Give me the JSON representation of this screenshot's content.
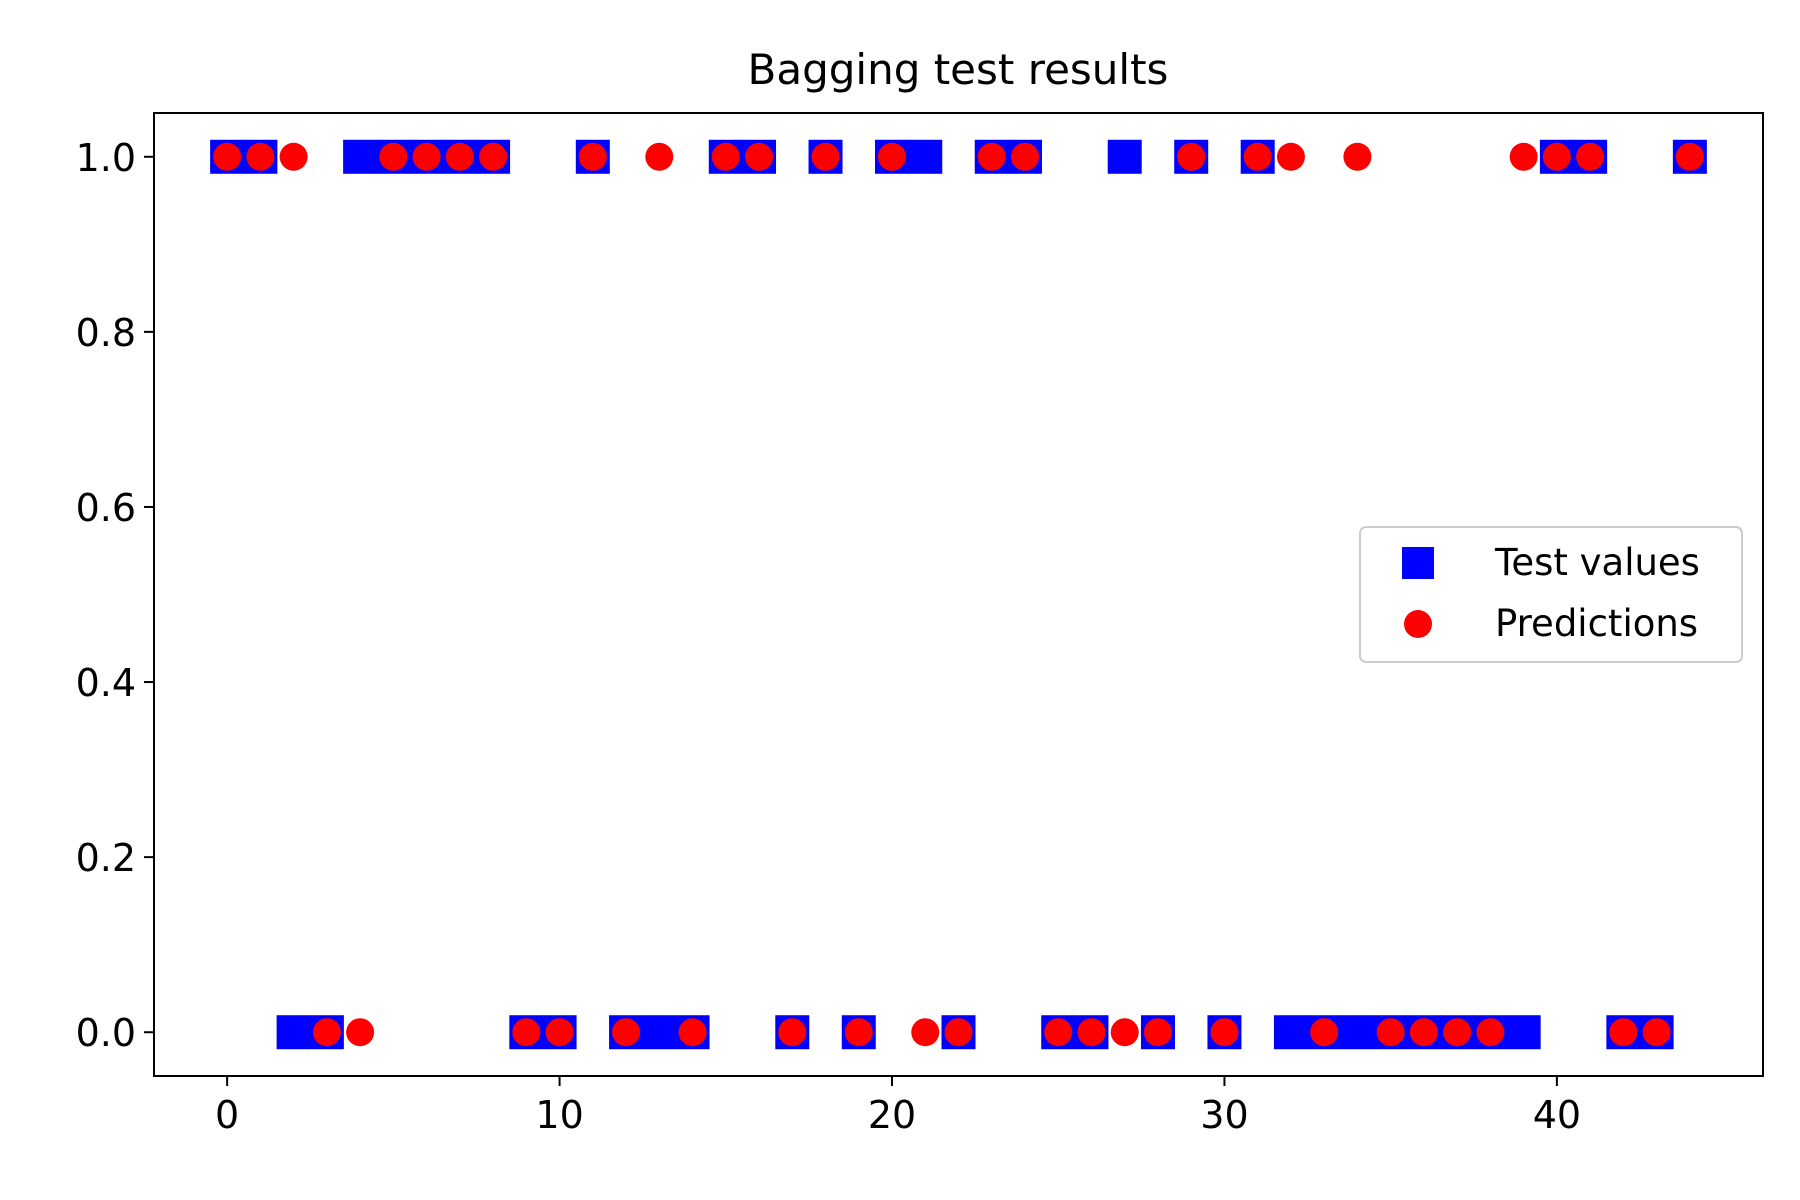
{
  "chart_data": {
    "type": "scatter",
    "title": "Bagging test results",
    "xlabel": "",
    "ylabel": "",
    "xlim": [
      -2.2,
      46.2
    ],
    "ylim": [
      -0.05,
      1.05
    ],
    "x_ticks": [
      0,
      10,
      20,
      30,
      40
    ],
    "y_ticks": [
      0.0,
      0.2,
      0.4,
      0.6,
      0.8,
      1.0
    ],
    "grid": false,
    "legend_position": "center-right",
    "x": [
      0,
      1,
      2,
      3,
      4,
      5,
      6,
      7,
      8,
      9,
      10,
      11,
      12,
      13,
      14,
      15,
      16,
      17,
      18,
      19,
      20,
      21,
      22,
      23,
      24,
      25,
      26,
      27,
      28,
      29,
      30,
      31,
      32,
      33,
      34,
      35,
      36,
      37,
      38,
      39,
      40,
      41,
      42,
      43,
      44
    ],
    "series": [
      {
        "name": "Test values",
        "marker": "square",
        "color": "#0000ff",
        "values": [
          1,
          1,
          0,
          0,
          1,
          1,
          1,
          1,
          1,
          0,
          0,
          1,
          0,
          0,
          0,
          1,
          1,
          0,
          1,
          0,
          1,
          1,
          0,
          1,
          1,
          0,
          0,
          1,
          0,
          1,
          0,
          1,
          0,
          0,
          0,
          0,
          0,
          0,
          0,
          0,
          1,
          1,
          0,
          0,
          1
        ]
      },
      {
        "name": "Predictions",
        "marker": "circle",
        "color": "#ff0000",
        "values": [
          1,
          1,
          1,
          0,
          0,
          1,
          1,
          1,
          1,
          0,
          0,
          1,
          0,
          1,
          0,
          1,
          1,
          0,
          1,
          0,
          1,
          0,
          0,
          1,
          1,
          0,
          0,
          0,
          0,
          1,
          0,
          1,
          1,
          0,
          1,
          0,
          0,
          0,
          0,
          1,
          1,
          1,
          0,
          0,
          1
        ]
      }
    ]
  }
}
